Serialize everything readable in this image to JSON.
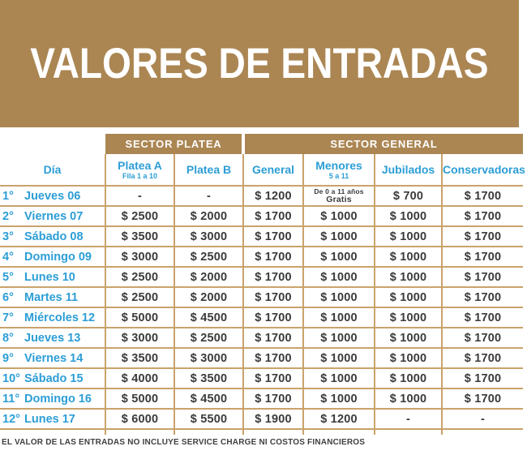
{
  "banner": {
    "title": "VALORES DE ENTRADAS",
    "bg_color": "#AB8653",
    "text_color": "#FFFFFF"
  },
  "table": {
    "sector_groups": [
      {
        "label": "SECTOR PLATEA"
      },
      {
        "label": "SECTOR GENERAL"
      }
    ],
    "columns": [
      {
        "key": "dia",
        "label": "Día"
      },
      {
        "key": "platea_a",
        "label": "Platea A",
        "sublabel": "Fila 1 a 10"
      },
      {
        "key": "platea_b",
        "label": "Platea B"
      },
      {
        "key": "general",
        "label": "General"
      },
      {
        "key": "menores",
        "label": "Menores",
        "sublabel": "5 a 11"
      },
      {
        "key": "jubilados",
        "label": "Jubilados"
      },
      {
        "key": "conservadoras",
        "label": "Conservadoras"
      }
    ],
    "rows": [
      {
        "ordinal": "1°",
        "day": "Jueves 06",
        "platea_a": "-",
        "platea_b": "-",
        "general": "$ 1200",
        "menores": "De 0 a 11 años",
        "menores_line2": "Gratis",
        "jubilados": "$ 700",
        "conservadoras": "$ 1700"
      },
      {
        "ordinal": "2°",
        "day": "Viernes 07",
        "platea_a": "$ 2500",
        "platea_b": "$ 2000",
        "general": "$ 1700",
        "menores": "$ 1000",
        "jubilados": "$ 1000",
        "conservadoras": "$ 1700"
      },
      {
        "ordinal": "3°",
        "day": "Sábado 08",
        "platea_a": "$ 3500",
        "platea_b": "$ 3000",
        "general": "$ 1700",
        "menores": "$ 1000",
        "jubilados": "$ 1000",
        "conservadoras": "$ 1700"
      },
      {
        "ordinal": "4°",
        "day": "Domingo 09",
        "platea_a": "$ 3000",
        "platea_b": "$ 2500",
        "general": "$ 1700",
        "menores": "$ 1000",
        "jubilados": "$ 1000",
        "conservadoras": "$ 1700"
      },
      {
        "ordinal": "5°",
        "day": "Lunes 10",
        "platea_a": "$ 2500",
        "platea_b": "$ 2000",
        "general": "$ 1700",
        "menores": "$ 1000",
        "jubilados": "$ 1000",
        "conservadoras": "$ 1700"
      },
      {
        "ordinal": "6°",
        "day": "Martes 11",
        "platea_a": "$ 2500",
        "platea_b": "$ 2000",
        "general": "$ 1700",
        "menores": "$ 1000",
        "jubilados": "$ 1000",
        "conservadoras": "$ 1700"
      },
      {
        "ordinal": "7°",
        "day": "Miércoles 12",
        "platea_a": "$ 5000",
        "platea_b": "$ 4500",
        "general": "$ 1700",
        "menores": "$ 1000",
        "jubilados": "$ 1000",
        "conservadoras": "$ 1700"
      },
      {
        "ordinal": "8°",
        "day": "Jueves 13",
        "platea_a": "$ 3000",
        "platea_b": "$ 2500",
        "general": "$ 1700",
        "menores": "$ 1000",
        "jubilados": "$ 1000",
        "conservadoras": "$ 1700"
      },
      {
        "ordinal": "9°",
        "day": "Viernes 14",
        "platea_a": "$ 3500",
        "platea_b": "$ 3000",
        "general": "$ 1700",
        "menores": "$ 1000",
        "jubilados": "$ 1000",
        "conservadoras": "$ 1700"
      },
      {
        "ordinal": "10°",
        "day": "Sábado 15",
        "platea_a": "$ 4000",
        "platea_b": "$ 3500",
        "general": "$ 1700",
        "menores": "$ 1000",
        "jubilados": "$ 1000",
        "conservadoras": "$ 1700"
      },
      {
        "ordinal": "11°",
        "day": "Domingo 16",
        "platea_a": "$ 5000",
        "platea_b": "$ 4500",
        "general": "$ 1700",
        "menores": "$ 1000",
        "jubilados": "$ 1000",
        "conservadoras": "$ 1700"
      },
      {
        "ordinal": "12°",
        "day": "Lunes 17",
        "platea_a": "$ 6000",
        "platea_b": "$ 5500",
        "general": "$ 1900",
        "menores": "$ 1200",
        "jubilados": "-",
        "conservadoras": "-"
      }
    ]
  },
  "footer": {
    "note": "EL VALOR DE LAS ENTRADAS NO INCLUYE SERVICE CHARGE NI COSTOS FINANCIEROS"
  },
  "colors": {
    "tan": "#AB8653",
    "grid_border": "#C9A36B",
    "blue": "#2C9ED6",
    "price_text": "#3B3B3B"
  }
}
